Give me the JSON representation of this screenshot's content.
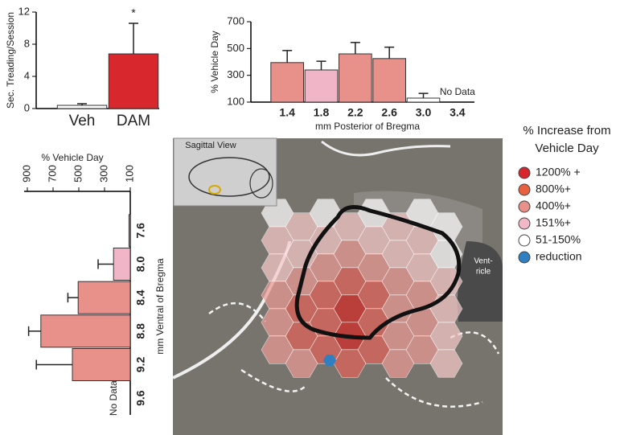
{
  "chart_data": [
    {
      "type": "bar",
      "orientation": "vertical",
      "ylabel": "Sec. Treading/Session",
      "categories": [
        "Veh",
        "DAM"
      ],
      "values": [
        0.4,
        6.8
      ],
      "errors": [
        0.2,
        3.8
      ],
      "colors": [
        "#ffffff",
        "#d9272e"
      ],
      "annotation": "*",
      "ylim": [
        0,
        12
      ],
      "yticks": [
        0,
        4,
        8,
        12
      ]
    },
    {
      "type": "bar",
      "orientation": "vertical",
      "ylabel": "% Vehicle Day",
      "xlabel": "mm Posterior of Bregma",
      "categories": [
        "1.4",
        "1.8",
        "2.2",
        "2.6",
        "3.0",
        "3.4"
      ],
      "values": [
        395,
        340,
        460,
        425,
        130,
        null
      ],
      "errors": [
        90,
        65,
        85,
        85,
        35,
        null
      ],
      "colors": [
        "#e8908a",
        "#f0b6c8",
        "#e8908a",
        "#e8908a",
        "#ffffff",
        "#ffffff"
      ],
      "missing_label": "No Data",
      "ylim": [
        100,
        700
      ],
      "yticks": [
        100,
        300,
        500,
        700
      ]
    },
    {
      "type": "bar",
      "orientation": "horizontal",
      "xlabel": "% Vehicle Day",
      "ylabel": "mm Ventral of Bregma",
      "categories": [
        "7.6",
        "8.0",
        "8.4",
        "8.8",
        "9.2",
        "9.6"
      ],
      "values": [
        110,
        230,
        505,
        795,
        550,
        null
      ],
      "errors": [
        null,
        120,
        80,
        95,
        280,
        null
      ],
      "colors": [
        "#e8908a",
        "#f0b6c8",
        "#e8908a",
        "#e8908a",
        "#e8908a",
        "#ffffff"
      ],
      "missing_label": "No Data",
      "xlim": [
        900,
        100
      ],
      "xticks": [
        900,
        700,
        500,
        300,
        100
      ]
    }
  ],
  "legend": {
    "title": [
      "% Increase from",
      "Vehicle Day"
    ],
    "items": [
      {
        "label": "1200% +",
        "color": "#d7262b"
      },
      {
        "label": "800%+",
        "color": "#e8603f"
      },
      {
        "label": "400%+",
        "color": "#e8908a"
      },
      {
        "label": "151%+",
        "color": "#f2b8c8"
      },
      {
        "label": "51-150%",
        "color": "#ffffff"
      },
      {
        "label": "reduction",
        "color": "#2f7fc1"
      }
    ]
  },
  "image": {
    "inset_label": "Sagittal View",
    "ventricle_label": [
      "Vent-",
      "ricle"
    ]
  }
}
